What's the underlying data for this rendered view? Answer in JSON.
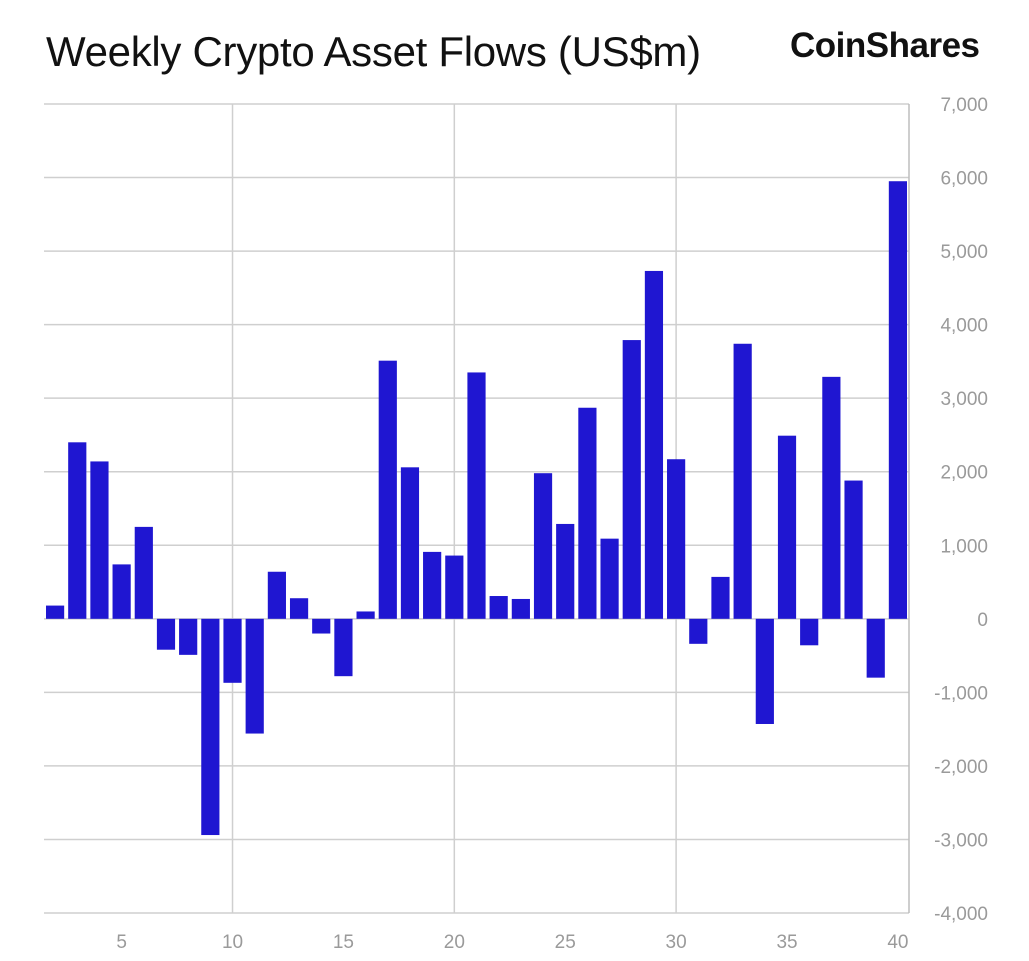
{
  "header": {
    "title": "Weekly Crypto Asset Flows (US$m)",
    "brand": "CoinShares"
  },
  "chart_data": {
    "type": "bar",
    "title": "Weekly Crypto Asset Flows (US$m)",
    "xlabel": "",
    "ylabel": "",
    "bar_color": "#1f16d1",
    "grid": true,
    "ylim": [
      -4000,
      7000
    ],
    "y_ticks": [
      7000,
      6000,
      5000,
      4000,
      3000,
      2000,
      1000,
      0,
      -1000,
      -2000,
      -3000,
      -4000
    ],
    "y_tick_labels": [
      "7,000",
      "6,000",
      "5,000",
      "4,000",
      "3,000",
      "2,000",
      "1,000",
      "0",
      "-1,000",
      "-2,000",
      "-3,000",
      "-4,000"
    ],
    "x_ticks": [
      5,
      10,
      15,
      20,
      25,
      30,
      35,
      40
    ],
    "categories": [
      2,
      3,
      4,
      5,
      6,
      7,
      8,
      9,
      10,
      11,
      12,
      13,
      14,
      15,
      16,
      17,
      18,
      19,
      20,
      21,
      22,
      23,
      24,
      25,
      26,
      27,
      28,
      29,
      30,
      31,
      32,
      33,
      34,
      35,
      36,
      37,
      38,
      39,
      40
    ],
    "values": [
      180,
      2400,
      2140,
      740,
      1250,
      -420,
      -490,
      -2940,
      -870,
      -1560,
      640,
      280,
      -200,
      -780,
      100,
      3510,
      2060,
      910,
      860,
      3350,
      310,
      270,
      1980,
      1290,
      2870,
      1090,
      3790,
      4730,
      2170,
      -340,
      570,
      3740,
      -1430,
      2490,
      -360,
      3290,
      1880,
      -800,
      5950
    ]
  }
}
